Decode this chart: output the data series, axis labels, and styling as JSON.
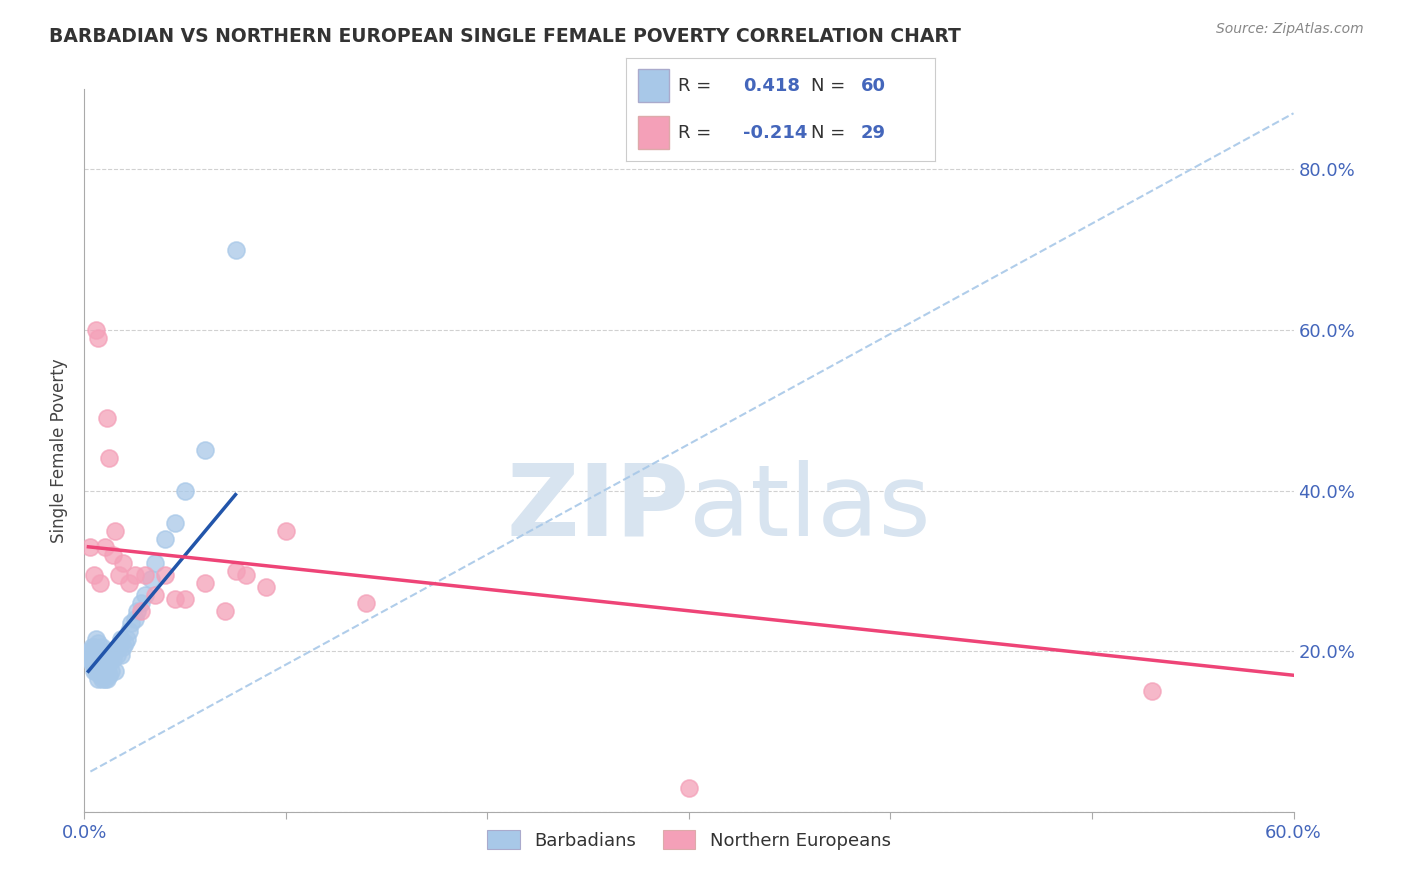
{
  "title": "BARBADIAN VS NORTHERN EUROPEAN SINGLE FEMALE POVERTY CORRELATION CHART",
  "source": "Source: ZipAtlas.com",
  "ylabel": "Single Female Poverty",
  "xlim": [
    0.0,
    0.6
  ],
  "ylim": [
    0.0,
    0.9
  ],
  "grid_color": "#cccccc",
  "background_color": "#ffffff",
  "title_color": "#333333",
  "axis_color": "#4466bb",
  "blue_color": "#a8c8e8",
  "pink_color": "#f4a0b8",
  "blue_line_color": "#2255aa",
  "pink_line_color": "#ee4477",
  "blue_fill": "#a8c8e8",
  "pink_fill": "#f4a0b8",
  "watermark_color": "#d8e4f0",
  "barbadians_x": [
    0.002,
    0.003,
    0.003,
    0.004,
    0.004,
    0.004,
    0.005,
    0.005,
    0.005,
    0.005,
    0.006,
    0.006,
    0.006,
    0.006,
    0.007,
    0.007,
    0.007,
    0.007,
    0.007,
    0.008,
    0.008,
    0.008,
    0.009,
    0.009,
    0.009,
    0.009,
    0.01,
    0.01,
    0.01,
    0.01,
    0.011,
    0.011,
    0.011,
    0.012,
    0.012,
    0.013,
    0.013,
    0.014,
    0.015,
    0.015,
    0.016,
    0.017,
    0.018,
    0.018,
    0.019,
    0.02,
    0.021,
    0.022,
    0.023,
    0.025,
    0.026,
    0.028,
    0.03,
    0.033,
    0.035,
    0.04,
    0.045,
    0.05,
    0.06,
    0.075
  ],
  "barbadians_y": [
    0.195,
    0.19,
    0.2,
    0.185,
    0.195,
    0.205,
    0.175,
    0.185,
    0.195,
    0.205,
    0.175,
    0.185,
    0.195,
    0.215,
    0.165,
    0.175,
    0.185,
    0.195,
    0.21,
    0.17,
    0.18,
    0.2,
    0.165,
    0.175,
    0.185,
    0.205,
    0.165,
    0.175,
    0.185,
    0.195,
    0.165,
    0.175,
    0.19,
    0.17,
    0.185,
    0.175,
    0.2,
    0.19,
    0.175,
    0.2,
    0.195,
    0.205,
    0.195,
    0.215,
    0.205,
    0.21,
    0.215,
    0.225,
    0.235,
    0.24,
    0.25,
    0.26,
    0.27,
    0.29,
    0.31,
    0.34,
    0.36,
    0.4,
    0.45,
    0.7
  ],
  "northern_x": [
    0.003,
    0.005,
    0.006,
    0.007,
    0.008,
    0.01,
    0.011,
    0.012,
    0.014,
    0.015,
    0.017,
    0.019,
    0.022,
    0.025,
    0.028,
    0.03,
    0.035,
    0.04,
    0.045,
    0.05,
    0.06,
    0.07,
    0.075,
    0.08,
    0.09,
    0.1,
    0.14,
    0.53,
    0.3
  ],
  "northern_y": [
    0.33,
    0.295,
    0.6,
    0.59,
    0.285,
    0.33,
    0.49,
    0.44,
    0.32,
    0.35,
    0.295,
    0.31,
    0.285,
    0.295,
    0.25,
    0.295,
    0.27,
    0.295,
    0.265,
    0.265,
    0.285,
    0.25,
    0.3,
    0.295,
    0.28,
    0.35,
    0.26,
    0.15,
    0.03
  ],
  "blue_regline_x": [
    0.002,
    0.075
  ],
  "blue_regline_y": [
    0.175,
    0.395
  ],
  "pink_regline_x": [
    0.002,
    0.6
  ],
  "pink_regline_y": [
    0.33,
    0.17
  ],
  "dash_line_x": [
    0.003,
    0.6
  ],
  "dash_line_y": [
    0.05,
    0.87
  ]
}
